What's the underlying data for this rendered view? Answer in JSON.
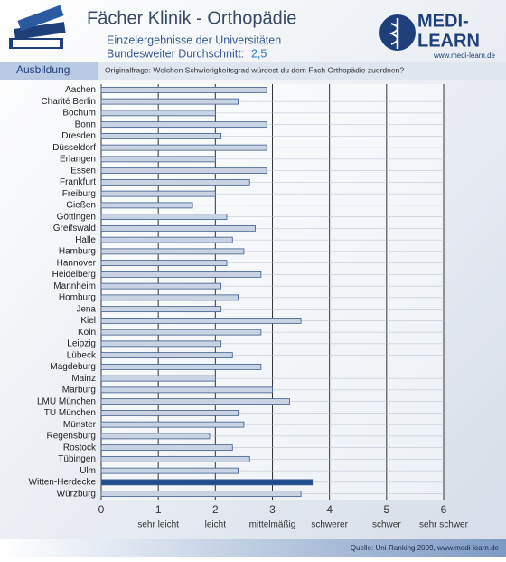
{
  "header": {
    "title": "Fächer Klinik - Orthopädie",
    "subtitle": "Einzelergebnisse der Universitäten",
    "average_label": "Bundesweiter Durchschnitt:",
    "average_value": "2,5",
    "logo_top": "MEDI-",
    "logo_bottom": "LEARN",
    "logo_url": "www.medi-learn.de",
    "section": "Ausbildung",
    "question": "Originalfrage: Welchen Schwierigkeitsgrad würdest du dem Fach Orthopädie zuordnen?"
  },
  "footer": {
    "source": "Quelle: Uni-Ranking 2009, www.medi-learn.de"
  },
  "chart_data": {
    "type": "hbar",
    "categories": [
      "Aachen",
      "Charité Berlin",
      "Bochum",
      "Bonn",
      "Dresden",
      "Düsseldorf",
      "Erlangen",
      "Essen",
      "Frankfurt",
      "Freiburg",
      "Gießen",
      "Göttingen",
      "Greifswald",
      "Halle",
      "Hamburg",
      "Hannover",
      "Heidelberg",
      "Mannheim",
      "Homburg",
      "Jena",
      "Kiel",
      "Köln",
      "Leipzig",
      "Lübeck",
      "Magdeburg",
      "Mainz",
      "Marburg",
      "LMU München",
      "TU München",
      "Münster",
      "Regensburg",
      "Rostock",
      "Tübingen",
      "Ulm",
      "Witten-Herdecke",
      "Würzburg"
    ],
    "values": [
      2.9,
      2.4,
      2.0,
      2.9,
      2.1,
      2.9,
      2.0,
      2.9,
      2.6,
      2.0,
      1.6,
      2.2,
      2.7,
      2.3,
      2.5,
      2.2,
      2.8,
      2.1,
      2.4,
      2.1,
      3.5,
      2.8,
      2.1,
      2.3,
      2.8,
      2.0,
      3.0,
      3.3,
      2.4,
      2.5,
      1.9,
      2.3,
      2.6,
      2.4,
      3.7,
      3.5
    ],
    "colors": [
      "#c9d3e3",
      "#c9d3e3",
      "#c9d3e3",
      "#c9d3e3",
      "#c9d3e3",
      "#c9d3e3",
      "#c9d3e3",
      "#c9d3e3",
      "#c9d3e3",
      "#c9d3e3",
      "#c9d3e3",
      "#c9d3e3",
      "#c9d3e3",
      "#c9d3e3",
      "#c9d3e3",
      "#c9d3e3",
      "#c9d3e3",
      "#c9d3e3",
      "#c9d3e3",
      "#c9d3e3",
      "#c9d3e3",
      "#c9d3e3",
      "#c9d3e3",
      "#c9d3e3",
      "#c9d3e3",
      "#c9d3e3",
      "#c9d3e3",
      "#c9d3e3",
      "#c9d3e3",
      "#c9d3e3",
      "#c9d3e3",
      "#c9d3e3",
      "#c9d3e3",
      "#c9d3e3",
      "#1f4f8f",
      "#c9d3e3"
    ],
    "xlim": [
      0,
      6
    ],
    "xticks": [
      0,
      1,
      2,
      3,
      4,
      5,
      6
    ],
    "xtick_captions": [
      "sehr leicht",
      "leicht",
      "mittelmäßig",
      "schwerer",
      "schwer",
      "sehr schwer"
    ],
    "grid": true
  }
}
